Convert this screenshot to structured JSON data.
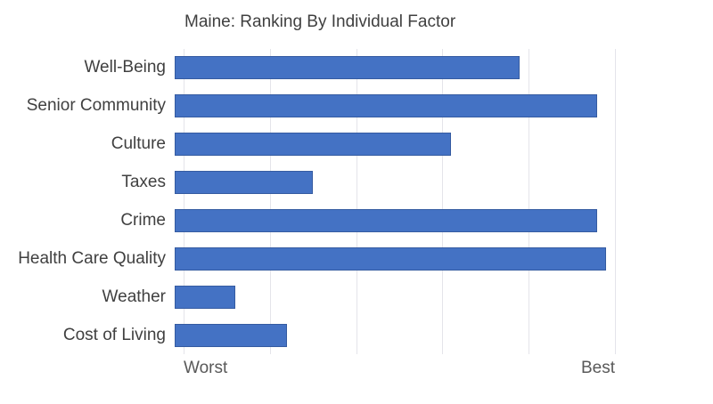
{
  "title": "Maine: Ranking By Individual Factor",
  "chart_data": {
    "type": "bar",
    "orientation": "horizontal",
    "title": "Maine: Ranking By Individual Factor",
    "categories": [
      "Well-Being",
      "Senior Community",
      "Culture",
      "Taxes",
      "Crime",
      "Health Care Quality",
      "Weather",
      "Cost of Living"
    ],
    "values": [
      40,
      49,
      32,
      16,
      49,
      50,
      7,
      13
    ],
    "xlim": [
      0,
      50
    ],
    "xlabel": "",
    "ylabel": "",
    "x_axis_left_label": "Worst",
    "x_axis_right_label": "Best",
    "grid": "vertical gridlines at 20% intervals, no horizontal gridlines",
    "legend_position": "none",
    "colors": {
      "bar_fill": "#4472C4",
      "bar_border": "#2A4985",
      "gridline": "#E4E4EA",
      "title_text": "#404040",
      "category_text": "#404040",
      "axis_text": "#595959",
      "background": "#FFFFFF"
    }
  },
  "axis": {
    "left_label": "Worst",
    "right_label": "Best"
  }
}
